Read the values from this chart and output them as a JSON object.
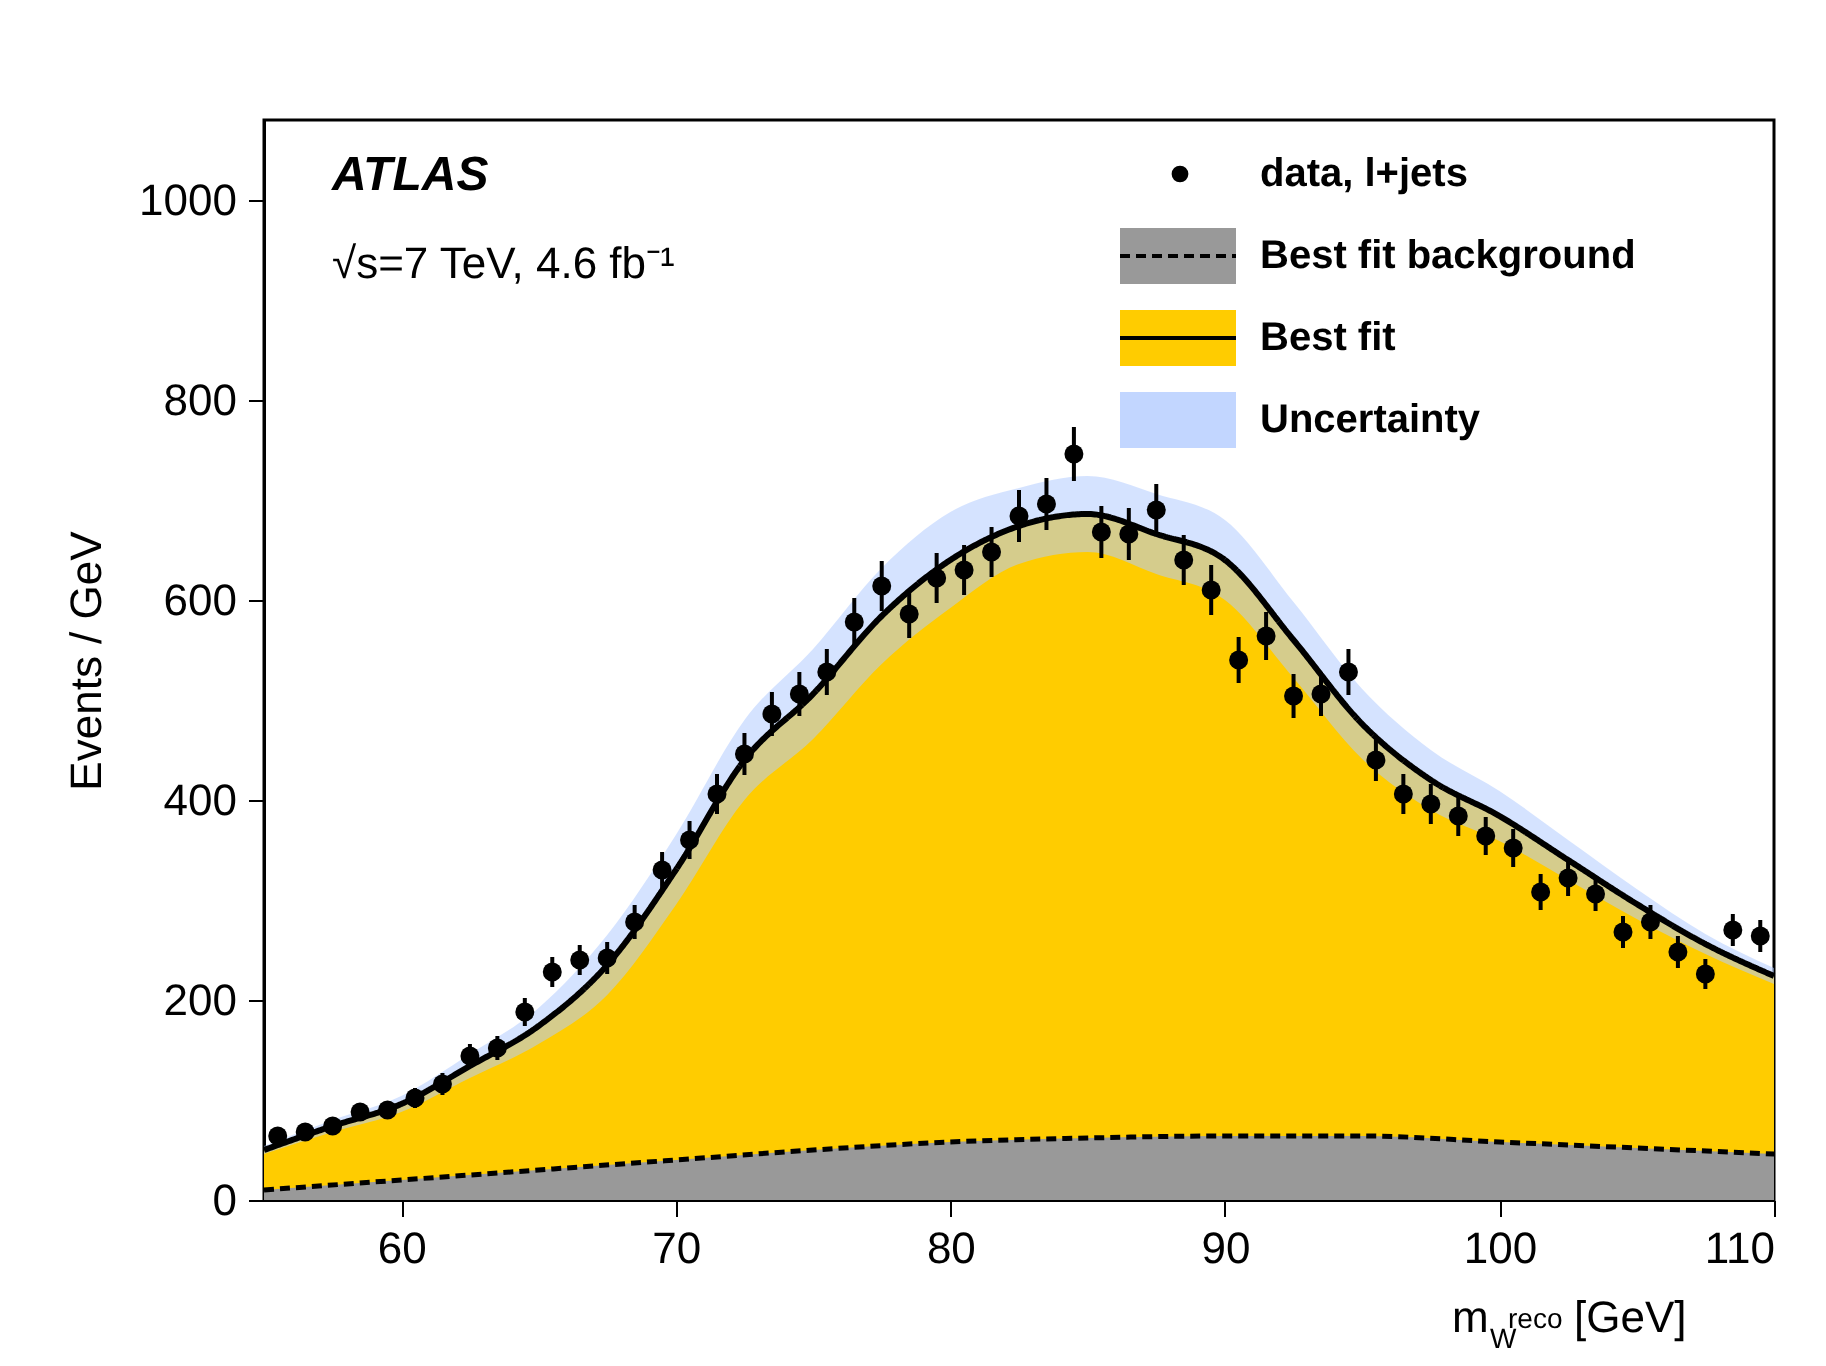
{
  "chart_data": {
    "type": "scatter",
    "ylabel": "Events / GeV",
    "xlabel": "m$_{W}$$^{reco}$ [GeV]",
    "annotations": [
      "ATLAS",
      "√s=7 TeV, 4.6 fb⁻¹"
    ],
    "xlim": [
      55,
      110
    ],
    "xticks": [
      60,
      70,
      80,
      90,
      100,
      110
    ],
    "ylim": [
      0,
      1080
    ],
    "yticks": [
      0,
      200,
      400,
      600,
      800,
      {
        "value": 1000,
        "label": "1000"
      }
    ],
    "grid": false,
    "legend": "top right",
    "series": [
      {
        "name": "Best fit",
        "type": "area",
        "color": "#ffcc00",
        "line_style": "solid",
        "x": [
          55,
          57.5,
          60,
          62.5,
          65,
          67.5,
          70,
          72.5,
          75,
          77.5,
          80,
          82.5,
          85,
          87.5,
          90,
          92.5,
          95,
          97.5,
          100,
          102.5,
          105,
          107.5,
          110
        ],
        "values": [
          50,
          74,
          96,
          134,
          174,
          235,
          330,
          440,
          506,
          584,
          640,
          674,
          686,
          666,
          640,
          560,
          476,
          420,
          384,
          340,
          296,
          256,
          224
        ]
      },
      {
        "name": "Uncertainty",
        "type": "area",
        "color": "#b3ccff",
        "x": [
          55,
          57.5,
          60,
          62.5,
          65,
          67.5,
          70,
          72.5,
          75,
          77.5,
          80,
          82.5,
          85,
          87.5,
          90,
          92.5,
          95,
          97.5,
          100,
          102.5,
          105,
          107.5,
          110
        ],
        "values": [
          null,
          null,
          null,
          null,
          null,
          null,
          null,
          null,
          null,
          null,
          null,
          null,
          null,
          null,
          null,
          null,
          null,
          null,
          null,
          null,
          null,
          null,
          null
        ],
        "lower": [
          46,
          68,
          88,
          122,
          156,
          205,
          295,
          400,
          461,
          536,
          592,
          636,
          648,
          626,
          600,
          522,
          441,
          390,
          359,
          320,
          281,
          246,
          216
        ],
        "upper": [
          54,
          80,
          104,
          146,
          192,
          265,
          365,
          480,
          551,
          632,
          688,
          712,
          724,
          706,
          680,
          598,
          511,
          450,
          409,
          360,
          311,
          266,
          232
        ]
      },
      {
        "name": "Best fit background",
        "type": "area",
        "color": "#999999",
        "line_style": "dashed",
        "x": [
          55,
          60,
          65,
          70,
          75,
          80,
          85,
          90,
          95,
          100,
          105,
          110
        ],
        "values": [
          10,
          20,
          30,
          40,
          50,
          58,
          62,
          64,
          64,
          58,
          52,
          46
        ]
      },
      {
        "name": "data, l+jets",
        "marker": "circle",
        "color": "#000000",
        "x": [
          55.5,
          56.5,
          57.5,
          58.5,
          59.5,
          60.5,
          61.5,
          62.5,
          63.5,
          64.5,
          65.5,
          66.5,
          67.5,
          68.5,
          69.5,
          70.5,
          71.5,
          72.5,
          73.5,
          74.5,
          75.5,
          76.5,
          77.5,
          78.5,
          79.5,
          80.5,
          81.5,
          82.5,
          83.5,
          84.5,
          85.5,
          86.5,
          87.5,
          88.5,
          89.5,
          90.5,
          91.5,
          92.5,
          93.5,
          94.5,
          95.5,
          96.5,
          97.5,
          98.5,
          99.5,
          100.5,
          101.5,
          102.5,
          103.5,
          104.5,
          105.5,
          106.5,
          107.5,
          108.5,
          109.5
        ],
        "values": [
          64,
          68,
          74,
          88,
          90,
          102,
          116,
          144,
          152,
          188,
          228,
          240,
          242,
          278,
          330,
          360,
          406,
          446,
          486,
          506,
          528,
          578,
          614,
          586,
          622,
          630,
          648,
          684,
          696,
          746,
          668,
          666,
          690,
          640,
          610,
          540,
          564,
          504,
          506,
          528,
          440,
          406,
          396,
          384,
          364,
          352,
          308,
          322,
          306,
          268,
          278,
          248,
          226,
          270,
          264
        ],
        "errors": [
          8,
          8,
          9,
          9,
          9,
          10,
          11,
          12,
          12,
          14,
          15,
          15,
          16,
          17,
          18,
          19,
          20,
          21,
          22,
          22,
          23,
          24,
          25,
          24,
          25,
          25,
          25,
          26,
          26,
          27,
          26,
          26,
          26,
          25,
          25,
          23,
          24,
          22,
          22,
          23,
          21,
          20,
          20,
          20,
          19,
          19,
          18,
          18,
          17,
          16,
          17,
          16,
          15,
          16,
          16
        ]
      }
    ]
  }
}
